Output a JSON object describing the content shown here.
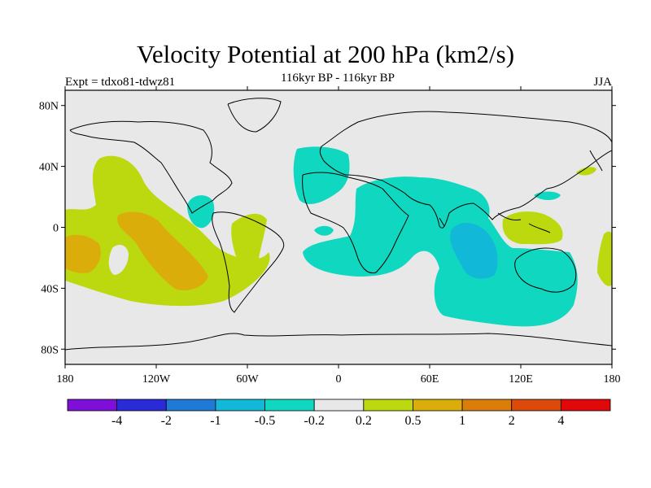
{
  "title": "Velocity Potential at 200 hPa (km2/s)",
  "left_label": "Expt = tdxo81-tdwz81",
  "center_label": "116kyr BP - 116kyr BP",
  "season": "JJA",
  "map": {
    "lat_ticks": [
      "80N",
      "40N",
      "0",
      "40S",
      "80S"
    ],
    "lat_values": [
      80,
      40,
      0,
      -40,
      -80
    ],
    "lon_ticks": [
      "180",
      "120W",
      "60W",
      "0",
      "60E",
      "120E",
      "180"
    ],
    "lon_values": [
      -180,
      -120,
      -60,
      0,
      60,
      120,
      180
    ],
    "lat_range": [
      -90,
      90
    ],
    "lon_range": [
      -180,
      180
    ]
  },
  "colorbar": {
    "colors": [
      "#7d0fd9",
      "#2a2ad6",
      "#1e7ad6",
      "#12b8d8",
      "#10d8c0",
      "#e8e8e8",
      "#bcd90f",
      "#dbad0b",
      "#db7d0b",
      "#db4a0b",
      "#e00808"
    ],
    "labels": [
      "-4",
      "-2",
      "-1",
      "-0.5",
      "-0.2",
      "0.2",
      "0.5",
      "1",
      "2",
      "4"
    ]
  },
  "background_color": "#e8e8e8"
}
